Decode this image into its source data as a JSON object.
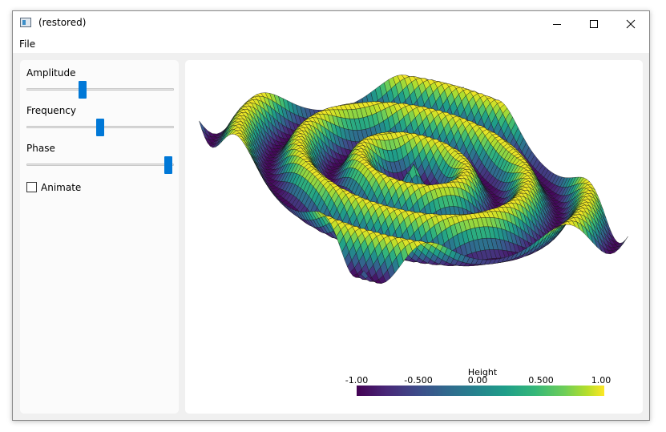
{
  "window": {
    "title": "(restored)",
    "app_icon": "window-app-icon"
  },
  "menubar": {
    "items": [
      {
        "label": "File"
      }
    ]
  },
  "controls": {
    "amplitude": {
      "label": "Amplitude",
      "value": 0.38
    },
    "frequency": {
      "label": "Frequency",
      "value": 0.5
    },
    "phase": {
      "label": "Phase",
      "value": 0.96
    },
    "animate": {
      "label": "Animate",
      "checked": false
    }
  },
  "colorbar": {
    "title": "Height",
    "ticks": [
      "-1.00",
      "-0.500",
      "0.00",
      "0.500",
      "1.00"
    ],
    "tick_values": [
      -1.0,
      -0.5,
      0.0,
      0.5,
      1.0
    ],
    "range": [
      -1.0,
      1.0
    ],
    "colormap": "viridis"
  },
  "chart_data": {
    "type": "surface",
    "zlabel": "Height",
    "zlim": [
      -1.0,
      1.0
    ]
  }
}
